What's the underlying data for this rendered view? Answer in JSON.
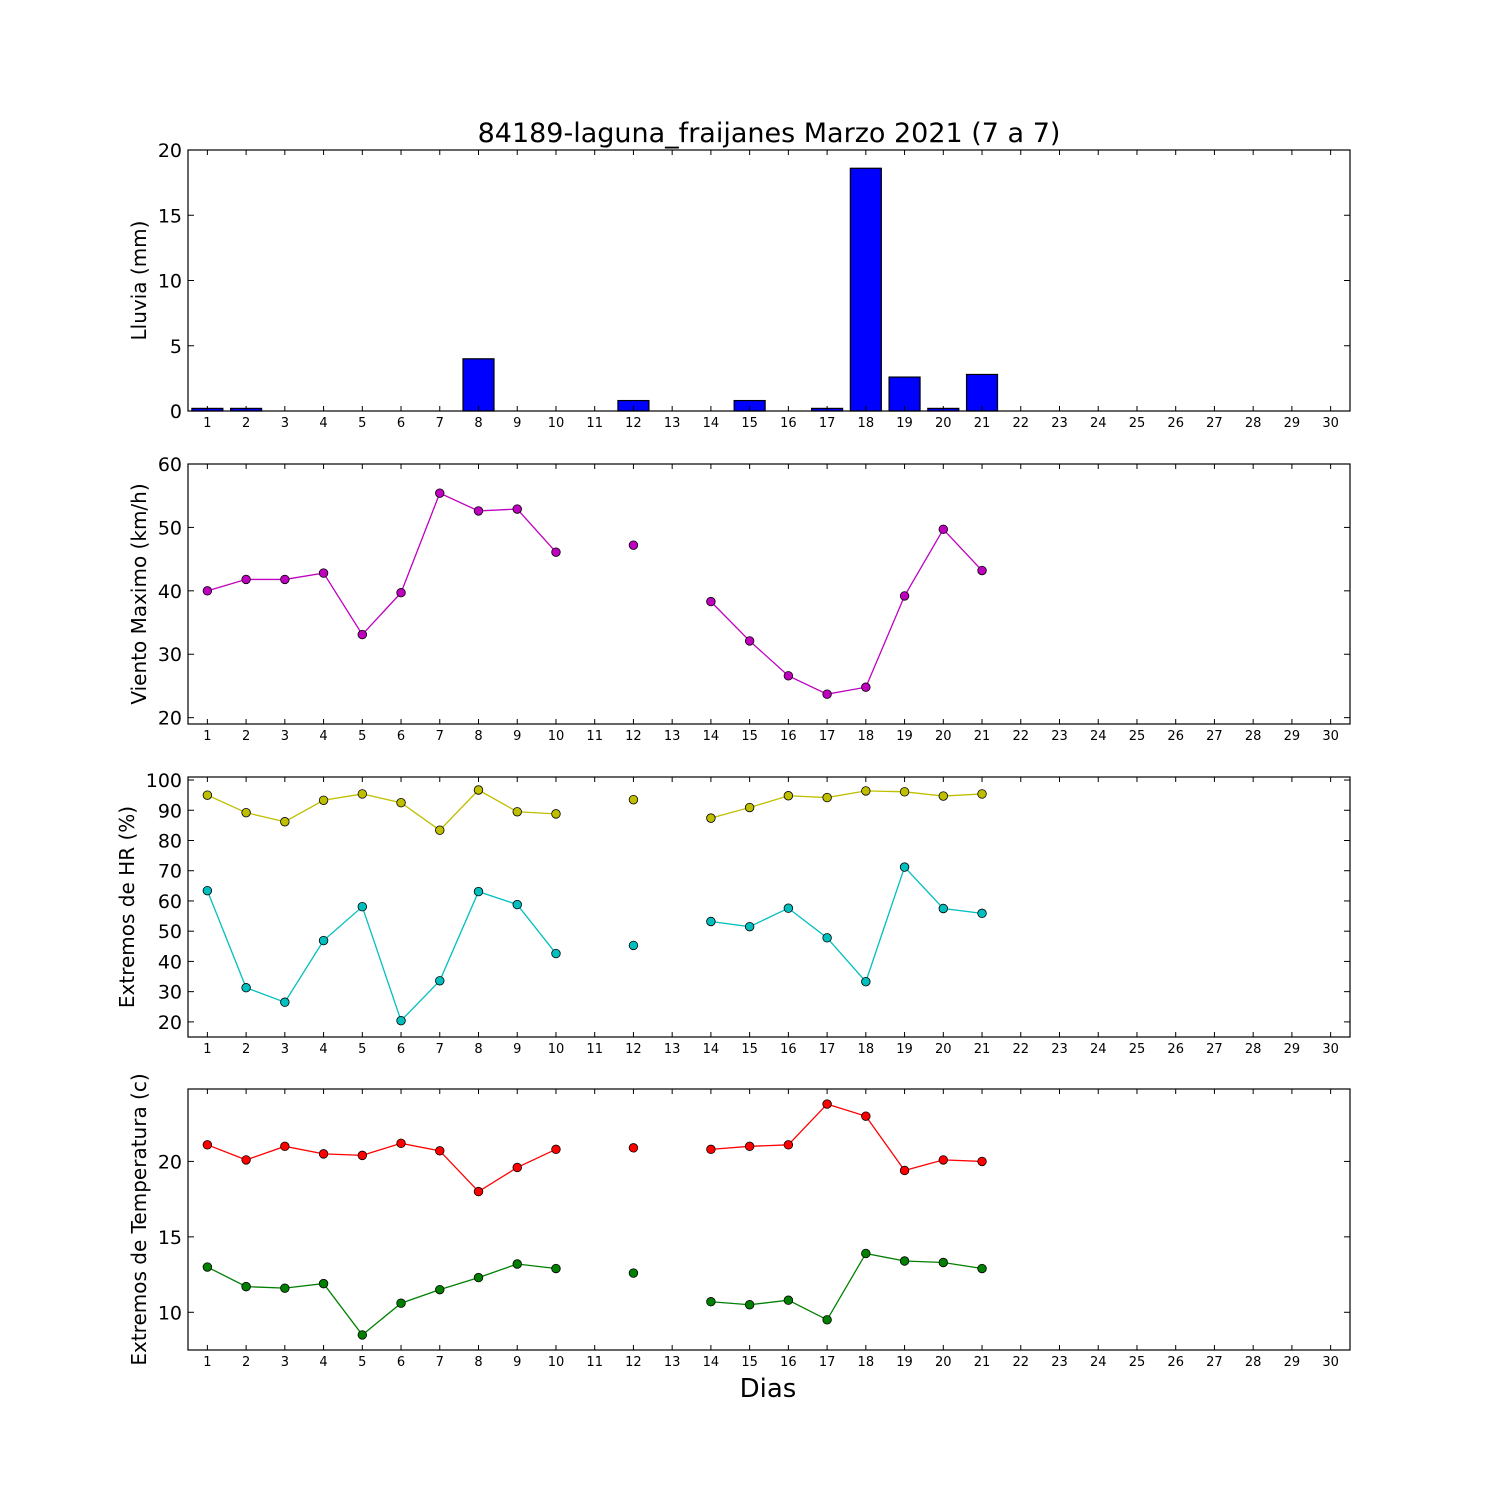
{
  "chart_data": [
    {
      "type": "bar",
      "title": "84189-laguna_fraijanes Marzo 2021  (7 a 7)",
      "ylabel": "Lluvia (mm)",
      "xlabel": "",
      "xlim": [
        0.5,
        30.5
      ],
      "ylim": [
        0,
        20
      ],
      "yticks": [
        0,
        5,
        10,
        15,
        20
      ],
      "x": [
        1,
        2,
        3,
        4,
        5,
        6,
        7,
        8,
        9,
        10,
        11,
        12,
        13,
        14,
        15,
        16,
        17,
        18,
        19,
        20,
        21,
        22,
        23,
        24,
        25,
        26,
        27,
        28,
        29,
        30
      ],
      "series": [
        {
          "color": "#0000ff",
          "values": [
            0.2,
            0.2,
            0,
            0,
            0,
            0,
            0,
            4.0,
            0,
            0,
            0,
            0.8,
            0,
            0,
            0.8,
            0,
            0.2,
            18.6,
            2.6,
            0.2,
            2.8,
            null,
            null,
            null,
            null,
            null,
            null,
            null,
            null,
            null
          ]
        }
      ]
    },
    {
      "type": "line",
      "ylabel": "Viento Maximo (km/h)",
      "xlabel": "",
      "xlim": [
        0.5,
        30.5
      ],
      "ylim": [
        19,
        60
      ],
      "yticks": [
        20,
        30,
        40,
        50,
        60
      ],
      "x": [
        1,
        2,
        3,
        4,
        5,
        6,
        7,
        8,
        9,
        10,
        11,
        12,
        13,
        14,
        15,
        16,
        17,
        18,
        19,
        20,
        21
      ],
      "series": [
        {
          "color": "#bf00bf",
          "values": [
            40,
            41.8,
            41.8,
            42.8,
            33.1,
            39.7,
            55.4,
            52.6,
            52.9,
            46.1,
            null,
            47.2,
            null,
            38.3,
            32.1,
            26.6,
            23.7,
            24.8,
            39.2,
            49.7,
            43.2
          ]
        }
      ]
    },
    {
      "type": "line",
      "ylabel": "Extremos de HR (%)",
      "xlabel": "",
      "xlim": [
        0.5,
        30.5
      ],
      "ylim": [
        15,
        101
      ],
      "yticks": [
        20,
        30,
        40,
        50,
        60,
        70,
        80,
        90,
        100
      ],
      "x": [
        1,
        2,
        3,
        4,
        5,
        6,
        7,
        8,
        9,
        10,
        11,
        12,
        13,
        14,
        15,
        16,
        17,
        18,
        19,
        20,
        21
      ],
      "series": [
        {
          "color": "#bfbf00",
          "values": [
            95,
            89.2,
            86.2,
            93.3,
            95.4,
            92.5,
            83.4,
            96.7,
            89.5,
            88.8,
            null,
            93.5,
            null,
            87.4,
            90.9,
            94.8,
            94.2,
            96.4,
            96.1,
            94.7,
            95.4
          ]
        },
        {
          "color": "#00bfbf",
          "values": [
            63.4,
            31.3,
            26.5,
            46.9,
            58.1,
            20.4,
            33.6,
            63.1,
            58.8,
            42.6,
            null,
            45.3,
            null,
            53.2,
            51.5,
            57.6,
            47.8,
            33.3,
            71.2,
            57.5,
            55.9
          ]
        }
      ]
    },
    {
      "type": "line",
      "ylabel": "Extremos de Temperatura (c)",
      "xlabel": "Dias",
      "xlim": [
        0.5,
        30.5
      ],
      "ylim": [
        7.5,
        24.8
      ],
      "yticks": [
        10,
        15,
        20
      ],
      "x": [
        1,
        2,
        3,
        4,
        5,
        6,
        7,
        8,
        9,
        10,
        11,
        12,
        13,
        14,
        15,
        16,
        17,
        18,
        19,
        20,
        21
      ],
      "series": [
        {
          "color": "#ff0000",
          "values": [
            21.1,
            20.1,
            21.0,
            20.5,
            20.4,
            21.2,
            20.7,
            18.0,
            19.6,
            20.8,
            null,
            20.9,
            null,
            20.8,
            21.0,
            21.1,
            23.8,
            23.0,
            19.4,
            20.1,
            20.0
          ]
        },
        {
          "color": "#008000",
          "values": [
            13.0,
            11.7,
            11.6,
            11.9,
            8.5,
            10.6,
            11.5,
            12.3,
            13.2,
            12.9,
            null,
            12.6,
            null,
            10.7,
            10.5,
            10.8,
            9.5,
            13.9,
            13.4,
            13.3,
            12.9
          ]
        }
      ]
    }
  ]
}
